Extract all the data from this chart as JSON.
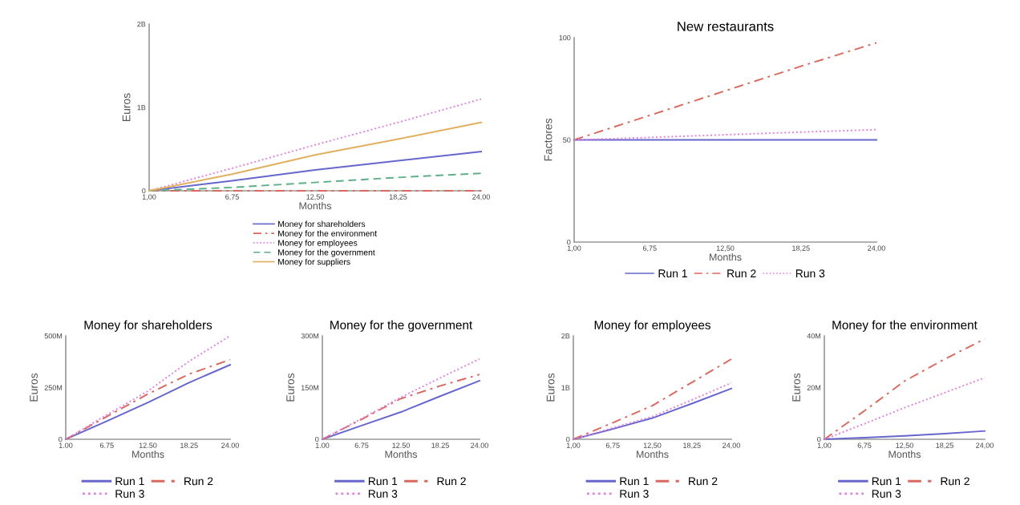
{
  "chart_data": [
    {
      "type": "line",
      "xlabel": "Months",
      "ylabel": "Euros",
      "x": [
        1,
        6.75,
        12.5,
        18.25,
        24
      ],
      "xlim": [
        1,
        24
      ],
      "ylim": [
        0,
        2000000000
      ],
      "xticks": [
        {
          "value": 1,
          "label": "1,00"
        },
        {
          "value": 6.75,
          "label": "6,75"
        },
        {
          "value": 12.5,
          "label": "12,50"
        },
        {
          "value": 18.25,
          "label": "18,25"
        },
        {
          "value": 24,
          "label": "24,00"
        }
      ],
      "yticks": [
        0,
        {
          "value": 1000000000,
          "label": "1B"
        },
        {
          "value": 2000000000,
          "label": "2B"
        }
      ],
      "legend": "bottom",
      "grid": false,
      "series": [
        {
          "name": "Money for shareholders",
          "color": "#6666cc",
          "line_style": "solid",
          "values": [
            0,
            120000000,
            250000000,
            360000000,
            470000000
          ]
        },
        {
          "name": "Money for the environment",
          "color": "#d9695f",
          "line_style": "dashdot",
          "values": [
            0,
            0,
            0,
            0,
            0
          ]
        },
        {
          "name": "Money for employees",
          "color": "#e080e0",
          "line_style": "dotted",
          "values": [
            0,
            270000000,
            550000000,
            820000000,
            1100000000
          ]
        },
        {
          "name": "Money for the government",
          "color": "#5fb08a",
          "line_style": "dashed",
          "values": [
            0,
            40000000,
            100000000,
            160000000,
            210000000
          ]
        },
        {
          "name": "Money for suppliers",
          "color": "#e0b060",
          "line_style": "solid",
          "values": [
            0,
            200000000,
            430000000,
            620000000,
            820000000
          ]
        }
      ]
    },
    {
      "type": "line",
      "title": "New restaurants",
      "xlabel": "Months",
      "ylabel": "Factores",
      "x": [
        1,
        6.75,
        12.5,
        18.25,
        24
      ],
      "xlim": [
        1,
        24
      ],
      "ylim": [
        0,
        100
      ],
      "xticks": [
        {
          "value": 1,
          "label": "1,00"
        },
        {
          "value": 6.75,
          "label": "6,75"
        },
        {
          "value": 12.5,
          "label": "12,50"
        },
        {
          "value": 18.25,
          "label": "18,25"
        },
        {
          "value": 24,
          "label": "24,00"
        }
      ],
      "yticks": [
        0,
        50,
        100
      ],
      "legend": "bottom",
      "grid": false,
      "series": [
        {
          "name": "Run 1",
          "color": "#6666cc",
          "line_style": "solid",
          "values": [
            50,
            50,
            50,
            50,
            50
          ]
        },
        {
          "name": "Run 2",
          "color": "#d9695f",
          "line_style": "dashdot",
          "values": [
            50,
            62,
            74,
            86,
            97.5
          ]
        },
        {
          "name": "Run 3",
          "color": "#e080e0",
          "line_style": "dotted",
          "values": [
            50,
            51.2,
            52.5,
            53.8,
            55
          ]
        }
      ]
    },
    {
      "type": "line",
      "title": "Money for shareholders",
      "xlabel": "Months",
      "ylabel": "Euros",
      "x": [
        1,
        6.75,
        12.5,
        18.25,
        24
      ],
      "xlim": [
        1,
        24
      ],
      "ylim": [
        0,
        500000000
      ],
      "xticks": [
        {
          "value": 1,
          "label": "1.00"
        },
        {
          "value": 6.75,
          "label": "6.75"
        },
        {
          "value": 12.5,
          "label": "12.50"
        },
        {
          "value": 18.25,
          "label": "18.25"
        },
        {
          "value": 24,
          "label": "24.00"
        }
      ],
      "yticks": [
        0,
        {
          "value": 250000000,
          "label": "250M"
        },
        {
          "value": 500000000,
          "label": "500M"
        }
      ],
      "legend": "bottom",
      "grid": false,
      "series": [
        {
          "name": "Run 1",
          "color": "#6666cc",
          "line_style": "solid",
          "values": [
            0,
            88000000,
            178000000,
            274000000,
            360000000
          ]
        },
        {
          "name": "Run 2",
          "color": "#d9695f",
          "line_style": "dashdot",
          "values": [
            0,
            110000000,
            219000000,
            315000000,
            385000000
          ]
        },
        {
          "name": "Run 3",
          "color": "#e080e0",
          "line_style": "dotted",
          "values": [
            0,
            118000000,
            233000000,
            377000000,
            500000000
          ]
        }
      ]
    },
    {
      "type": "line",
      "title": "Money for the government",
      "xlabel": "Months",
      "ylabel": "Euros",
      "x": [
        1,
        6.75,
        12.5,
        18.25,
        24
      ],
      "xlim": [
        1,
        24
      ],
      "ylim": [
        0,
        300000000
      ],
      "xticks": [
        {
          "value": 1,
          "label": "1.00"
        },
        {
          "value": 6.75,
          "label": "6.75"
        },
        {
          "value": 12.5,
          "label": "12.50"
        },
        {
          "value": 18.25,
          "label": "18.25"
        },
        {
          "value": 24,
          "label": "24.00"
        }
      ],
      "yticks": [
        0,
        {
          "value": 150000000,
          "label": "150M"
        },
        {
          "value": 300000000,
          "label": "300M"
        }
      ],
      "legend": "bottom",
      "grid": false,
      "series": [
        {
          "name": "Run 1",
          "color": "#6666cc",
          "line_style": "solid",
          "values": [
            0,
            40000000,
            79000000,
            125000000,
            170000000
          ]
        },
        {
          "name": "Run 2",
          "color": "#d9695f",
          "line_style": "dashdot",
          "values": [
            0,
            58000000,
            118000000,
            155000000,
            188000000
          ]
        },
        {
          "name": "Run 3",
          "color": "#e080e0",
          "line_style": "dotted",
          "values": [
            0,
            60000000,
            122000000,
            178000000,
            233000000
          ]
        }
      ]
    },
    {
      "type": "line",
      "title": "Money for employees",
      "xlabel": "Months",
      "ylabel": "Euros",
      "x": [
        1,
        6.75,
        12.5,
        18.25,
        24
      ],
      "xlim": [
        1,
        24
      ],
      "ylim": [
        0,
        2000000000
      ],
      "xticks": [
        {
          "value": 1,
          "label": "1,00"
        },
        {
          "value": 6.75,
          "label": "6,75"
        },
        {
          "value": 12.5,
          "label": "12,50"
        },
        {
          "value": 18.25,
          "label": "18,25"
        },
        {
          "value": 24,
          "label": "24,00"
        }
      ],
      "yticks": [
        0,
        {
          "value": 1000000000,
          "label": "1B"
        },
        {
          "value": 2000000000,
          "label": "2B"
        }
      ],
      "legend": "bottom",
      "grid": false,
      "series": [
        {
          "name": "Run 1",
          "color": "#6666cc",
          "line_style": "solid",
          "values": [
            0,
            200000000,
            410000000,
            690000000,
            980000000
          ]
        },
        {
          "name": "Run 2",
          "color": "#d9695f",
          "line_style": "dashdot",
          "values": [
            0,
            320000000,
            650000000,
            1100000000,
            1550000000
          ]
        },
        {
          "name": "Run 3",
          "color": "#e080e0",
          "line_style": "dotted",
          "values": [
            0,
            220000000,
            440000000,
            760000000,
            1090000000
          ]
        }
      ]
    },
    {
      "type": "line",
      "title": "Money for the environment",
      "xlabel": "Months",
      "ylabel": "Euros",
      "x": [
        1,
        6.75,
        12.5,
        18.25,
        24
      ],
      "xlim": [
        1,
        24
      ],
      "ylim": [
        0,
        40000000
      ],
      "xticks": [
        {
          "value": 1,
          "label": "1,00"
        },
        {
          "value": 6.75,
          "label": "6,75"
        },
        {
          "value": 12.5,
          "label": "12,50"
        },
        {
          "value": 18.25,
          "label": "18,25"
        },
        {
          "value": 24,
          "label": "24,00"
        }
      ],
      "yticks": [
        0,
        {
          "value": 20000000,
          "label": "20M"
        },
        {
          "value": 40000000,
          "label": "40M"
        }
      ],
      "legend": "bottom",
      "grid": false,
      "series": [
        {
          "name": "Run 1",
          "color": "#6666cc",
          "line_style": "solid",
          "values": [
            0,
            600000,
            1300000,
            2200000,
            3200000
          ]
        },
        {
          "name": "Run 2",
          "color": "#d9695f",
          "line_style": "dashdot",
          "values": [
            0,
            11000000,
            22500000,
            31000000,
            38800000
          ]
        },
        {
          "name": "Run 3",
          "color": "#e080e0",
          "line_style": "dotted",
          "values": [
            0,
            6000000,
            12200000,
            18000000,
            23800000
          ]
        }
      ]
    }
  ]
}
